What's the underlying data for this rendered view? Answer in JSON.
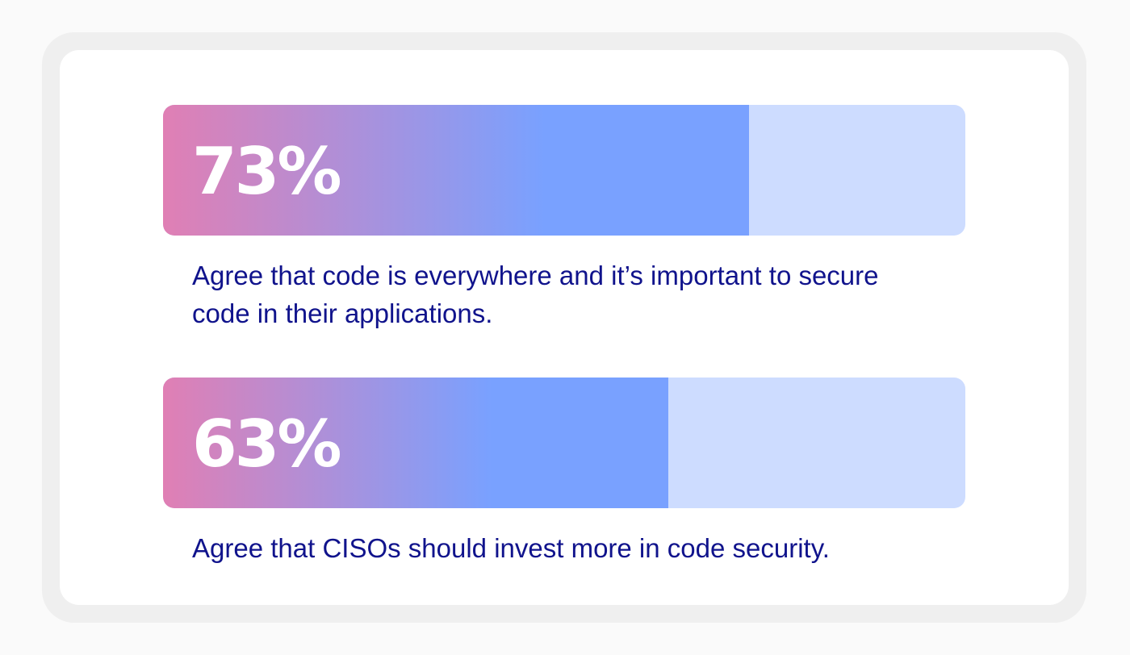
{
  "colors": {
    "bar_gradient_start": "#e07fb4",
    "bar_gradient_end": "#79a1ff",
    "bar_track": "#cddcff",
    "caption_text": "#10138c",
    "value_text": "#ffffff"
  },
  "chart_data": {
    "type": "bar",
    "orientation": "horizontal",
    "unit": "%",
    "xlim": [
      0,
      100
    ],
    "bars": [
      {
        "value": 73,
        "label": "73%",
        "caption": "Agree that code is everywhere and it’s important to secure code in their applications."
      },
      {
        "value": 63,
        "label": "63%",
        "caption": "Agree that CISOs should invest more in code security."
      }
    ]
  }
}
